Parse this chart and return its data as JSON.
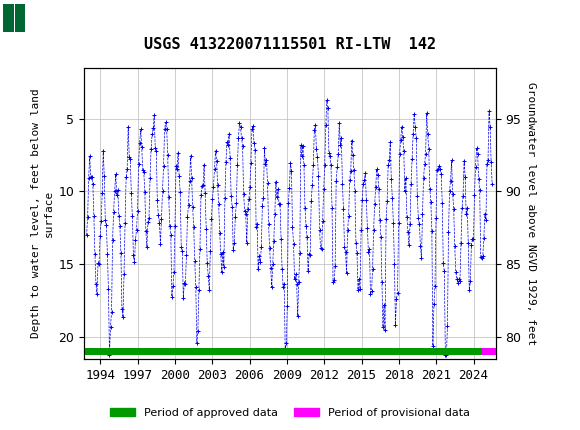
{
  "title": "USGS 413220071115501 RI-LTW  142",
  "ylabel_left": "Depth to water level, feet below land\nsurface",
  "ylabel_right": "Groundwater level above NGVD 1929, feet",
  "ylim_left": [
    21.5,
    1.5
  ],
  "ylim_right": [
    78.5,
    98.5
  ],
  "yticks_left": [
    5,
    10,
    15,
    20
  ],
  "yticks_right": [
    95,
    90,
    85,
    80
  ],
  "xlim": [
    1992.7,
    2025.8
  ],
  "xticks": [
    1994,
    1997,
    2000,
    2003,
    2006,
    2009,
    2012,
    2015,
    2018,
    2021,
    2024
  ],
  "header_color": "#006633",
  "data_color": "#0000EE",
  "approved_color": "#009900",
  "provisional_color": "#FF00FF",
  "background_color": "#FFFFFF",
  "plot_bg_color": "#FFFFFF",
  "grid_color": "#BBBBBB",
  "approved_bar_start": 1992.7,
  "approved_bar_end": 2024.7,
  "provisional_bar_start": 2024.7,
  "provisional_bar_end": 2025.8,
  "fig_width": 5.8,
  "fig_height": 4.3,
  "dpi": 100
}
